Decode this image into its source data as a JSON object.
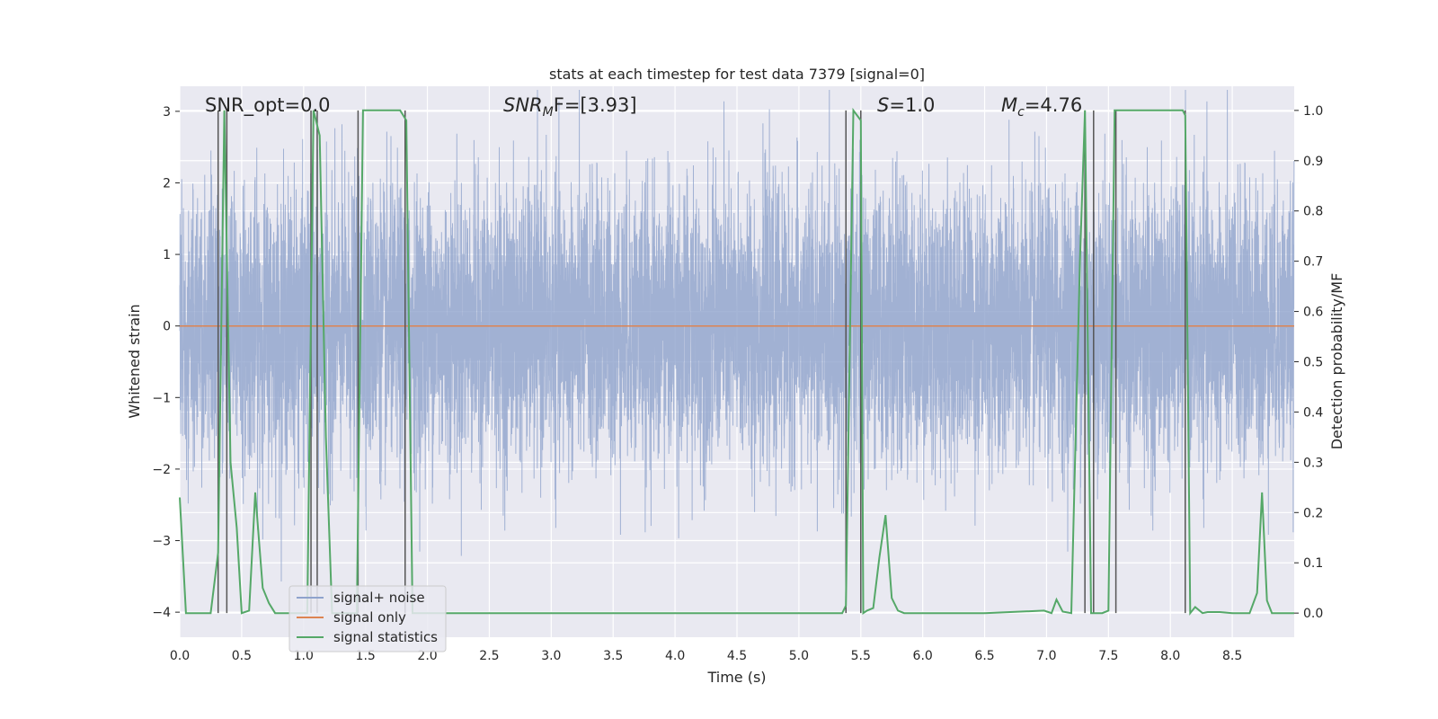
{
  "chart_data": {
    "type": "line",
    "title": "stats at each timestep for test data 7379 [signal=0]",
    "xlabel": "Time (s)",
    "ylabel_left": "Whitened strain",
    "ylabel_right": "Detection probability/MF",
    "xlim": [
      0.0,
      9.0
    ],
    "ylim_left": [
      -4.35,
      3.35
    ],
    "ylim_right": [
      -0.048,
      1.048
    ],
    "xticks": [
      "0.0",
      "0.5",
      "1.0",
      "1.5",
      "2.0",
      "2.5",
      "3.0",
      "3.5",
      "4.0",
      "4.5",
      "5.0",
      "5.5",
      "6.0",
      "6.5",
      "7.0",
      "7.5",
      "8.0",
      "8.5"
    ],
    "yticks_left": [
      "−4",
      "−3",
      "−2",
      "−1",
      "0",
      "1",
      "2",
      "3"
    ],
    "yticks_right": [
      "0.0",
      "0.1",
      "0.2",
      "0.3",
      "0.4",
      "0.5",
      "0.6",
      "0.7",
      "0.8",
      "0.9",
      "1.0"
    ],
    "grid": true,
    "legend_position": "lower-left",
    "annotations": {
      "snr_opt": "SNR_opt=0.0",
      "snr_mf_sym": "SNR",
      "snr_mf_sub": "M",
      "snr_mf_rest": "F=[3.93]",
      "s_sym": "S",
      "s_rest": "=1.0",
      "mc_sym": "M",
      "mc_sub": "c",
      "mc_rest": "=4.76"
    },
    "series": [
      {
        "name": "signal+ noise",
        "color": "#8fa3cc",
        "axis": "left",
        "description_values": "noise band approx. ±1.2 typical, peaks to ±3.3",
        "sample_rate_hz": 1000,
        "duration_s": 9.0,
        "rms": 0.95
      },
      {
        "name": "signal only",
        "color": "#dd8452",
        "axis": "left",
        "x": [
          0.0,
          9.0
        ],
        "y": [
          0.0,
          0.0
        ]
      },
      {
        "name": "signal statistics",
        "color": "#55a868",
        "axis": "right",
        "x": [
          0.0,
          0.05,
          0.25,
          0.31,
          0.36,
          0.41,
          0.46,
          0.5,
          0.56,
          0.61,
          0.67,
          0.72,
          0.77,
          0.82,
          0.87,
          0.92,
          0.97,
          1.03,
          1.08,
          1.13,
          1.18,
          1.23,
          1.28,
          1.33,
          1.38,
          1.43,
          1.48,
          1.53,
          1.58,
          1.63,
          1.68,
          1.73,
          1.78,
          1.83,
          1.88,
          1.93,
          2.0,
          3.0,
          4.0,
          4.6,
          5.0,
          5.35,
          5.38,
          5.44,
          5.5,
          5.52,
          5.55,
          5.6,
          5.65,
          5.7,
          5.75,
          5.8,
          5.85,
          5.9,
          6.0,
          6.5,
          6.98,
          7.04,
          7.08,
          7.13,
          7.2,
          7.27,
          7.31,
          7.36,
          7.4,
          7.45,
          7.5,
          7.55,
          7.6,
          7.7,
          7.8,
          7.9,
          8.0,
          8.1,
          8.12,
          8.16,
          8.2,
          8.26,
          8.3,
          8.4,
          8.5,
          8.6,
          8.64,
          8.7,
          8.74,
          8.78,
          8.82,
          8.87,
          8.91,
          9.0
        ],
        "y": [
          0.23,
          0.0,
          0.0,
          0.12,
          1.0,
          0.3,
          0.17,
          0.0,
          0.005,
          0.24,
          0.05,
          0.02,
          0.0,
          0.0,
          0.0,
          0.0,
          0.0,
          0.0,
          1.0,
          0.95,
          0.35,
          0.0,
          0.0,
          0.0,
          0.0,
          0.0,
          1.0,
          1.0,
          1.0,
          1.0,
          1.0,
          1.0,
          1.0,
          0.98,
          0.0,
          0.0,
          0.0,
          0.0,
          0.0,
          0.0,
          0.0,
          0.0,
          0.015,
          1.0,
          0.98,
          0.0,
          0.005,
          0.01,
          0.11,
          0.195,
          0.03,
          0.005,
          0.0,
          0.0,
          0.0,
          0.0,
          0.005,
          0.0,
          0.027,
          0.003,
          0.0,
          0.7,
          1.0,
          0.0,
          0.0,
          0.0,
          0.005,
          1.0,
          1.0,
          1.0,
          1.0,
          1.0,
          1.0,
          1.0,
          0.99,
          0.0,
          0.012,
          0.0,
          0.002,
          0.002,
          0.0,
          0.0,
          0.0,
          0.04,
          0.24,
          0.025,
          0.0,
          0.0,
          0.0,
          0.0
        ]
      }
    ],
    "vlines_x": [
      0.31,
      0.38,
      1.06,
      1.11,
      1.44,
      1.82,
      5.38,
      5.5,
      7.31,
      7.38,
      7.56,
      8.12
    ]
  }
}
